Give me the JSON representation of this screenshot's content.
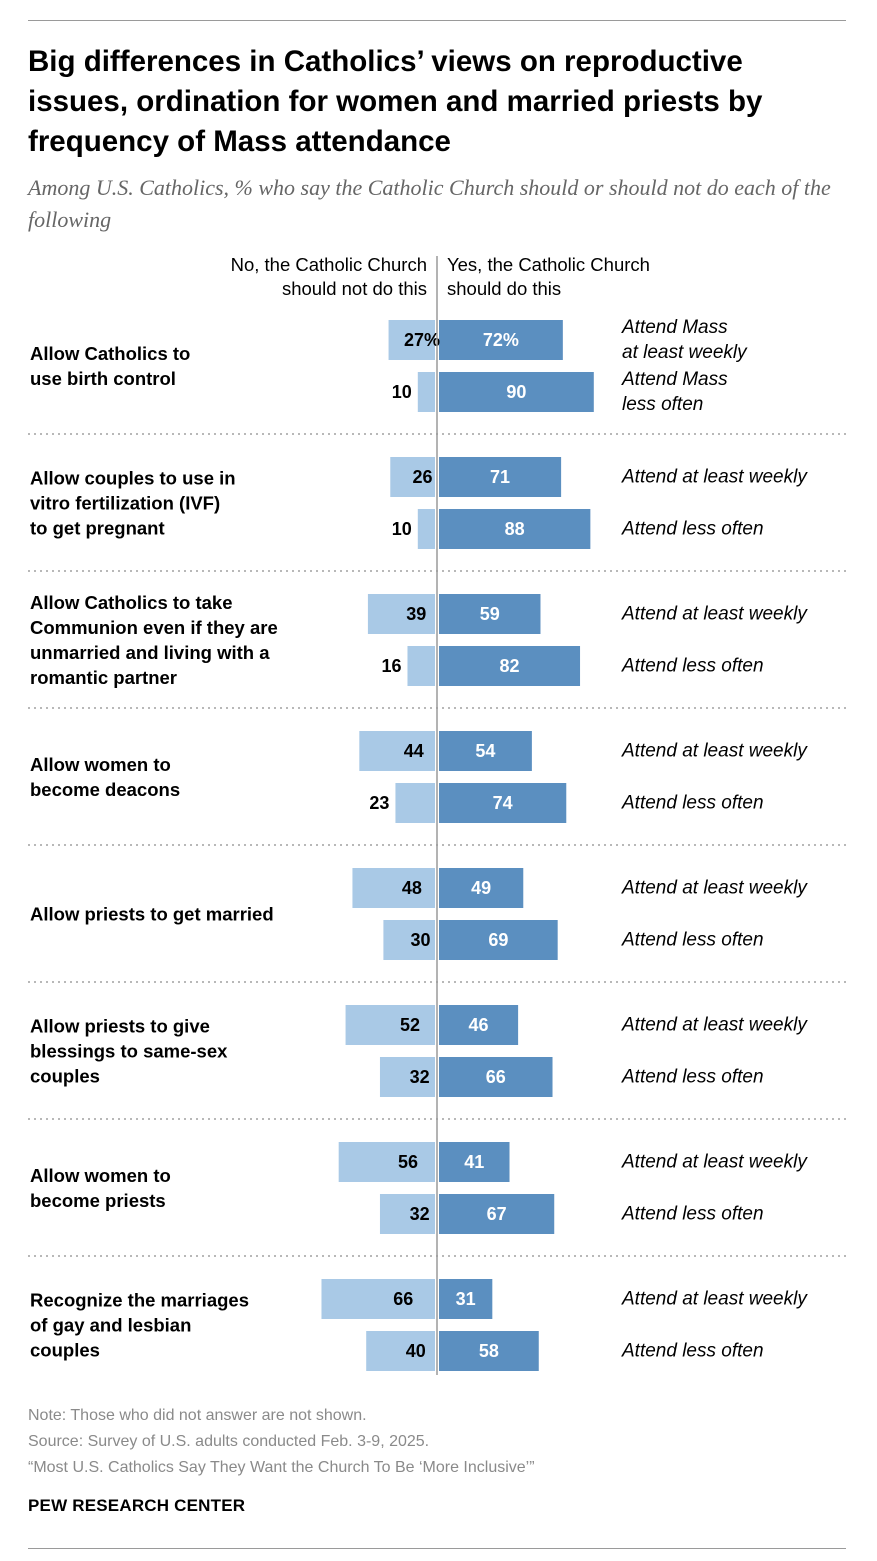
{
  "header": {
    "title": "Big differences in Catholics’ views on reproductive issues, ordination for women and married priests by frequency of Mass attendance",
    "subtitle": "Among U.S. Catholics, % who say the Catholic Church should or should not do each of the following"
  },
  "columns": {
    "no_line1": "No, the Catholic Church",
    "no_line2": "should not do this",
    "yes_line1": "Yes, the Catholic Church",
    "yes_line2": "should do this"
  },
  "colors": {
    "no": "#a9c9e6",
    "yes": "#5b8fc0",
    "divider": "#b8b8b8",
    "axis": "#9a9a9a"
  },
  "chart_data": {
    "type": "bar",
    "orientation": "horizontal-diverging",
    "series": [
      {
        "name": "No, the Catholic Church should not do this"
      },
      {
        "name": "Yes, the Catholic Church should do this"
      }
    ],
    "groups": [
      {
        "label": [
          "Allow Catholics to",
          "use birth control"
        ],
        "rows": [
          {
            "attendance": [
              "Attend Mass",
              "at least weekly"
            ],
            "no": 27,
            "yes": 72,
            "no_label": "27%",
            "yes_label": "72%"
          },
          {
            "attendance": [
              "Attend Mass",
              "less often"
            ],
            "no": 10,
            "yes": 90,
            "no_label": "10",
            "yes_label": "90"
          }
        ]
      },
      {
        "label": [
          "Allow couples to use in",
          "vitro fertilization (IVF)",
          "to get pregnant"
        ],
        "rows": [
          {
            "attendance": [
              "Attend at least weekly"
            ],
            "no": 26,
            "yes": 71,
            "no_label": "26",
            "yes_label": "71"
          },
          {
            "attendance": [
              "Attend less often"
            ],
            "no": 10,
            "yes": 88,
            "no_label": "10",
            "yes_label": "88"
          }
        ]
      },
      {
        "label": [
          "Allow Catholics to take",
          "Communion even if they are",
          "unmarried and living with a",
          "romantic partner"
        ],
        "rows": [
          {
            "attendance": [
              "Attend at least weekly"
            ],
            "no": 39,
            "yes": 59,
            "no_label": "39",
            "yes_label": "59"
          },
          {
            "attendance": [
              "Attend less often"
            ],
            "no": 16,
            "yes": 82,
            "no_label": "16",
            "yes_label": "82"
          }
        ]
      },
      {
        "label": [
          "Allow women to",
          "become deacons"
        ],
        "rows": [
          {
            "attendance": [
              "Attend at least weekly"
            ],
            "no": 44,
            "yes": 54,
            "no_label": "44",
            "yes_label": "54"
          },
          {
            "attendance": [
              "Attend less often"
            ],
            "no": 23,
            "yes": 74,
            "no_label": "23",
            "yes_label": "74"
          }
        ]
      },
      {
        "label": [
          "Allow priests to get married"
        ],
        "rows": [
          {
            "attendance": [
              "Attend at least weekly"
            ],
            "no": 48,
            "yes": 49,
            "no_label": "48",
            "yes_label": "49"
          },
          {
            "attendance": [
              "Attend less often"
            ],
            "no": 30,
            "yes": 69,
            "no_label": "30",
            "yes_label": "69"
          }
        ]
      },
      {
        "label": [
          "Allow priests to give",
          "blessings to same-sex",
          "couples"
        ],
        "rows": [
          {
            "attendance": [
              "Attend at least weekly"
            ],
            "no": 52,
            "yes": 46,
            "no_label": "52",
            "yes_label": "46"
          },
          {
            "attendance": [
              "Attend less often"
            ],
            "no": 32,
            "yes": 66,
            "no_label": "32",
            "yes_label": "66"
          }
        ]
      },
      {
        "label": [
          "Allow women to",
          "become priests"
        ],
        "rows": [
          {
            "attendance": [
              "Attend at least weekly"
            ],
            "no": 56,
            "yes": 41,
            "no_label": "56",
            "yes_label": "41"
          },
          {
            "attendance": [
              "Attend less often"
            ],
            "no": 32,
            "yes": 67,
            "no_label": "32",
            "yes_label": "67"
          }
        ]
      },
      {
        "label": [
          "Recognize the marriages",
          "of gay and lesbian",
          "couples"
        ],
        "rows": [
          {
            "attendance": [
              "Attend at least weekly"
            ],
            "no": 66,
            "yes": 31,
            "no_label": "66",
            "yes_label": "31"
          },
          {
            "attendance": [
              "Attend less often"
            ],
            "no": 40,
            "yes": 58,
            "no_label": "40",
            "yes_label": "58"
          }
        ]
      }
    ]
  },
  "footer": {
    "note": "Note: Those who did not answer are not shown.",
    "source": "Source: Survey of U.S. adults conducted Feb. 3-9, 2025.",
    "report": "“Most U.S. Catholics Say They Want the Church To Be ‘More Inclusive’”",
    "brand": "PEW RESEARCH CENTER"
  }
}
